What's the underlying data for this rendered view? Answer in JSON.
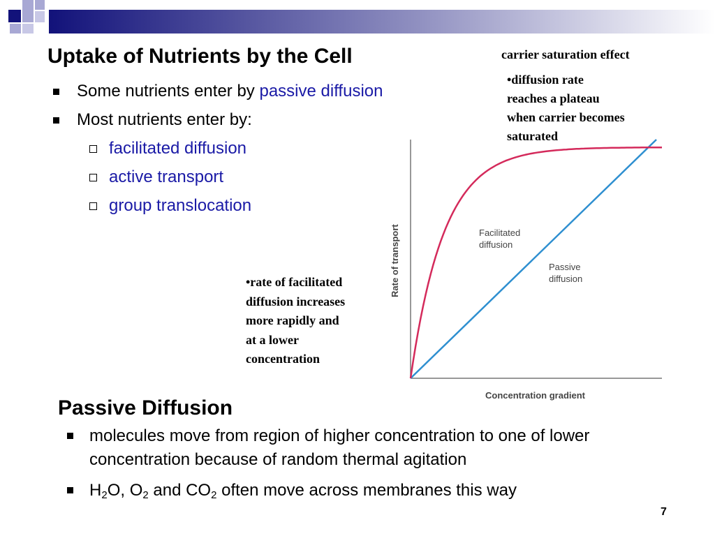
{
  "slide": {
    "title": "Uptake of Nutrients by the Cell",
    "page_number": "7"
  },
  "bullets": [
    {
      "prefix": "Some nutrients enter by ",
      "highlight": "passive diffusion"
    },
    {
      "prefix": "Most nutrients enter by:",
      "highlight": ""
    }
  ],
  "sub_bullets": [
    "facilitated diffusion",
    "active transport",
    "group translocation"
  ],
  "notes": {
    "top": "carrier saturation effect",
    "rate_lines": [
      "•diffusion rate",
      "reaches a plateau",
      "when carrier becomes",
      "saturated"
    ],
    "left_lines": [
      "•rate of facilitated",
      "diffusion increases",
      "more rapidly and",
      "at a lower",
      "concentration"
    ]
  },
  "chart_data": {
    "type": "line",
    "xlabel": "Concentration gradient",
    "ylabel": "Rate of transport",
    "series": [
      {
        "name": "Facilitated diffusion",
        "name_lines": [
          "Facilitated",
          "diffusion"
        ],
        "color": "#d42a5b",
        "shape": "saturating"
      },
      {
        "name": "Passive diffusion",
        "name_lines": [
          "Passive",
          "diffusion"
        ],
        "color": "#2e8fd0",
        "shape": "linear"
      }
    ],
    "grid": false,
    "ticks": false
  },
  "passive": {
    "heading": "Passive Diffusion",
    "bullet1": "molecules move from region of higher concentration to one of lower concentration because of random thermal agitation",
    "bullet2": {
      "h": "H",
      "h_sub": "2",
      "o_part": "O, O",
      "o_sub": "2",
      "mid": " and CO",
      "co_sub": "2",
      "rest": " often move across membranes this way"
    }
  },
  "colors": {
    "accent_blue": "#1a1aa6",
    "header_navy": "#12127a"
  }
}
